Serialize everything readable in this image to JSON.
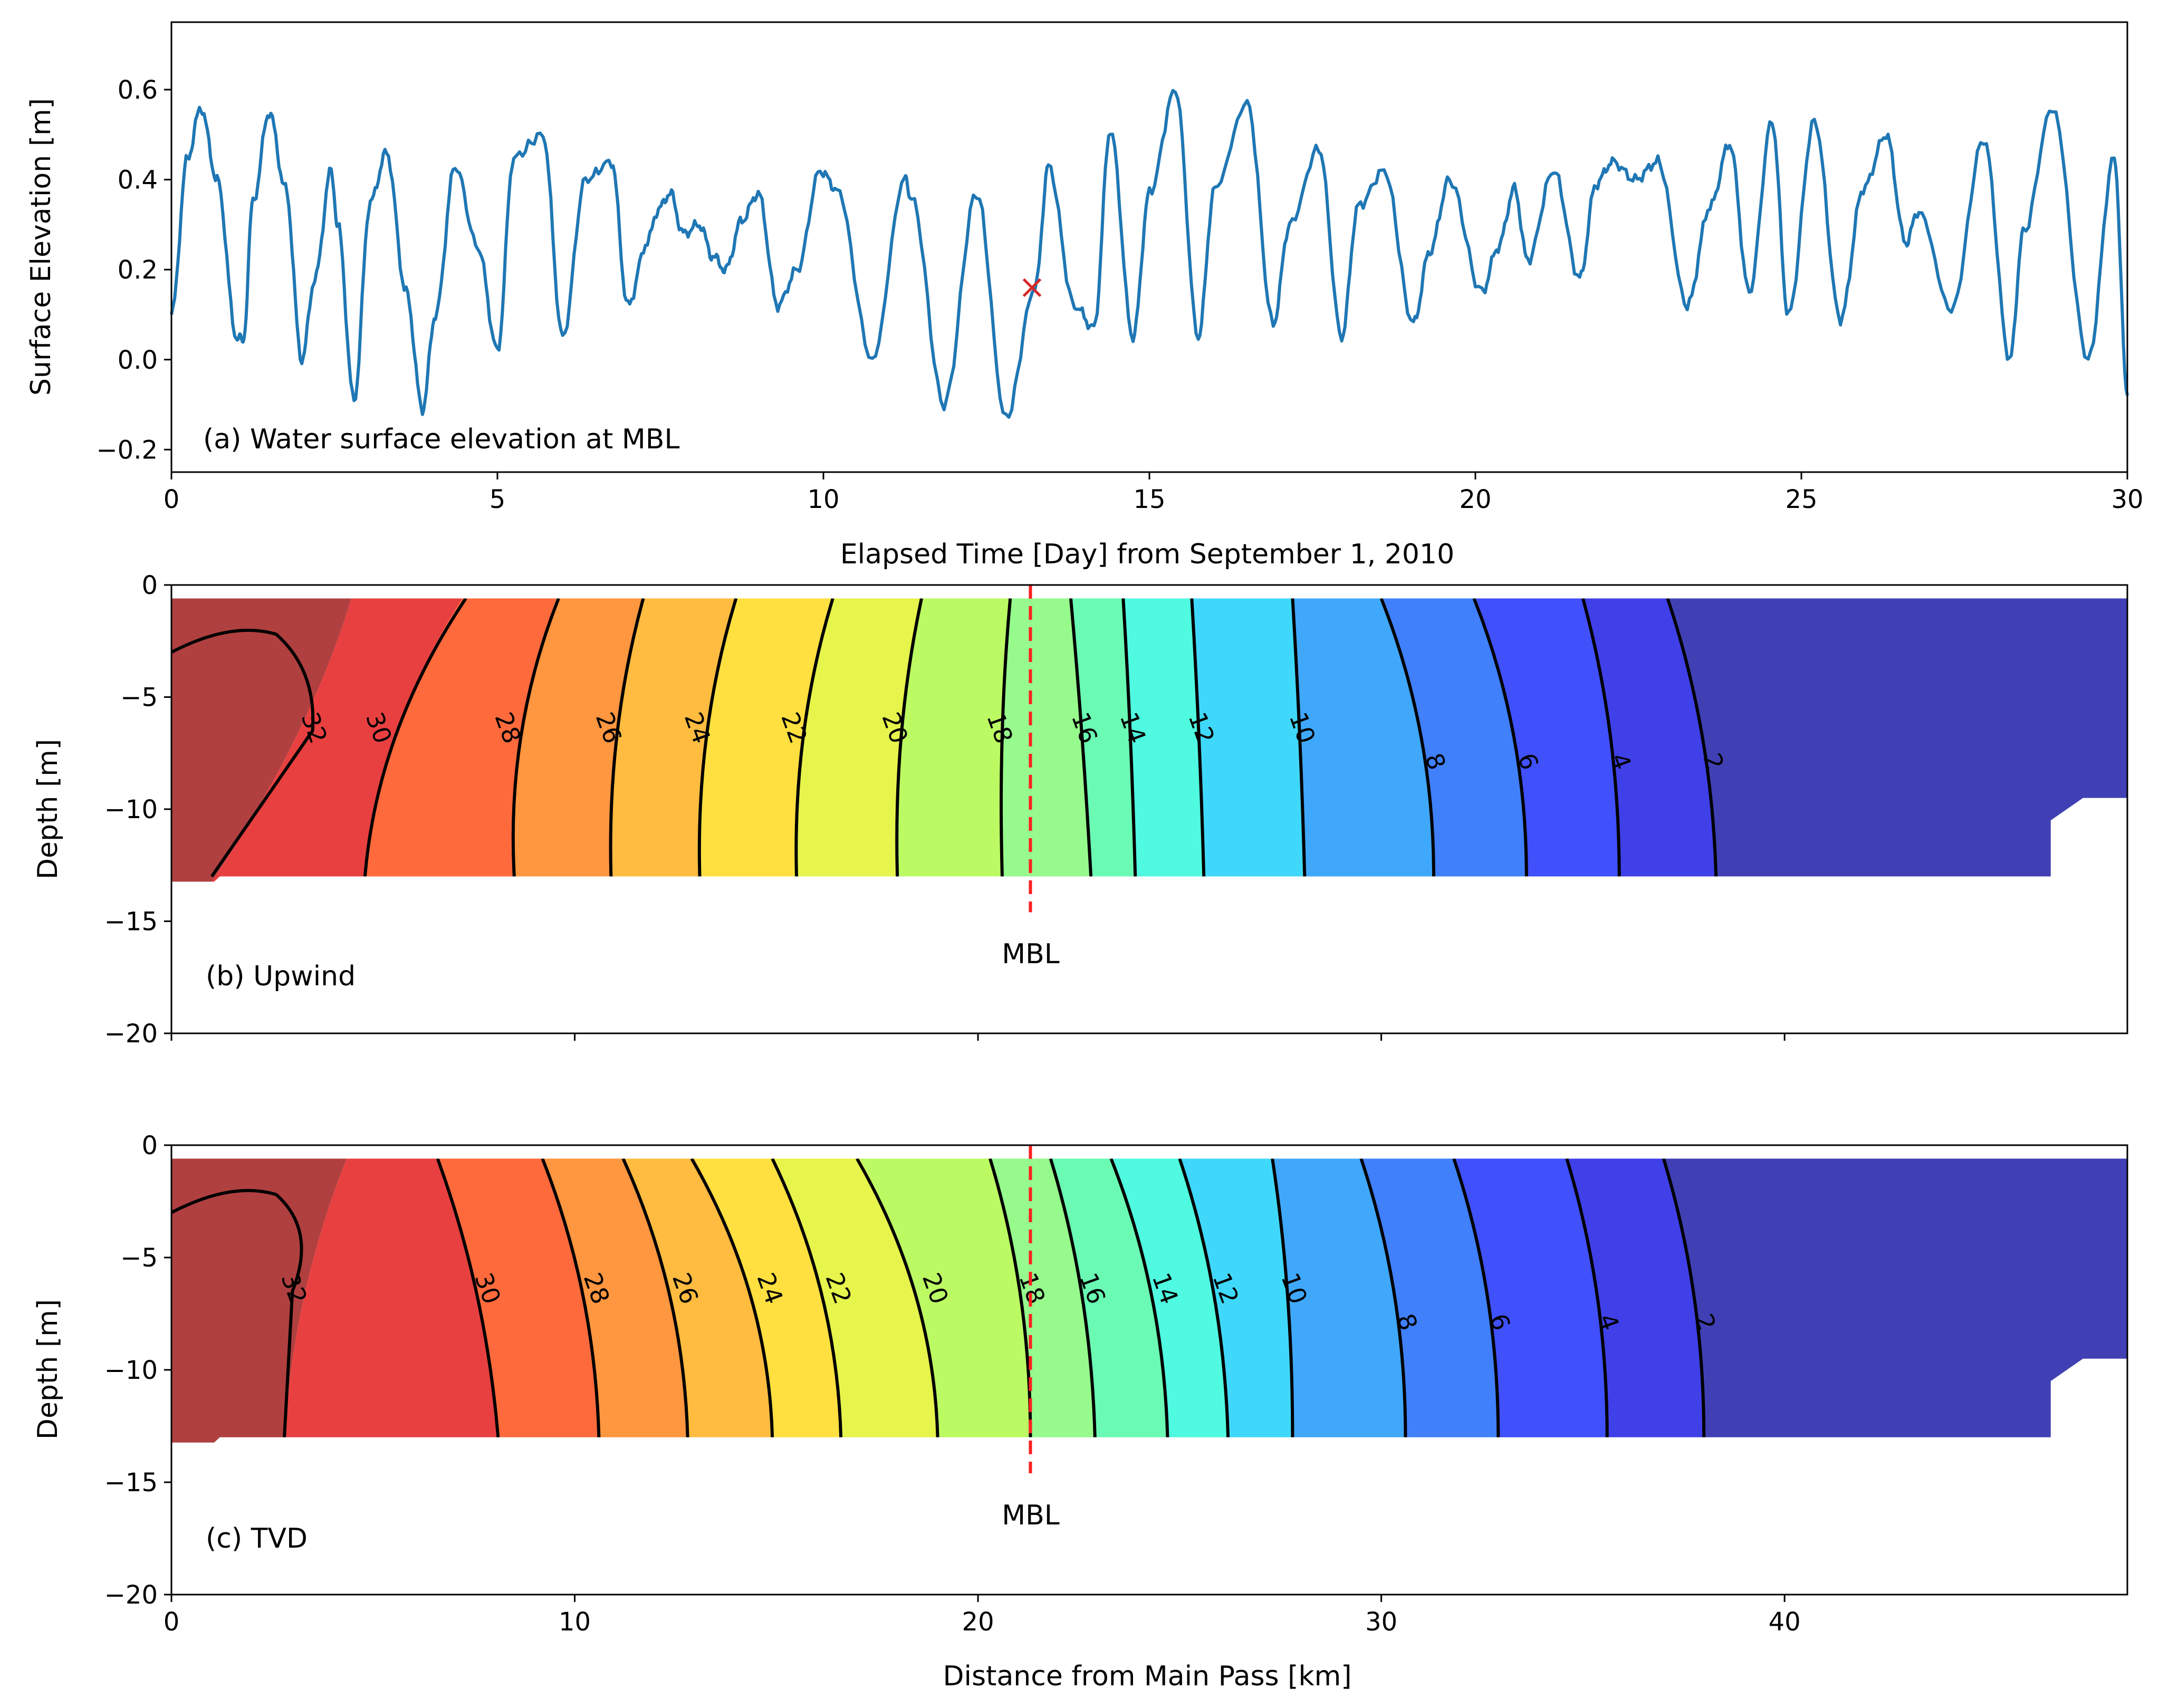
{
  "chart_data": [
    {
      "panel": "a",
      "type": "line",
      "annotation": "(a) Water surface elevation at MBL",
      "xlabel": "Elapsed Time [Day] from September 1, 2010",
      "ylabel": "Surface Elevation [m]",
      "xlim": [
        0,
        30
      ],
      "ylim": [
        -0.25,
        0.75
      ],
      "xticks": [
        "0",
        "5",
        "10",
        "15",
        "20",
        "25",
        "30"
      ],
      "yticks": [
        "−0.2",
        "0.0",
        "0.2",
        "0.4",
        "0.6"
      ],
      "series": [
        {
          "name": "Water surface elevation",
          "color": "#1f77b4",
          "x": [
            0,
            0.25,
            0.45,
            0.7,
            1.0,
            1.1,
            1.25,
            1.5,
            1.75,
            2.0,
            2.2,
            2.45,
            2.55,
            2.8,
            3.05,
            3.3,
            3.6,
            3.85,
            4.05,
            4.35,
            4.7,
            5.0,
            5.25,
            5.7,
            6.0,
            6.35,
            6.75,
            7.0,
            7.3,
            7.45,
            7.65,
            7.85,
            8.1,
            8.3,
            8.5,
            8.75,
            9.0,
            9.3,
            9.6,
            9.95,
            10.2,
            10.75,
            11.25,
            11.35,
            11.85,
            12.35,
            12.8,
            13.25,
            13.45,
            13.85,
            14.15,
            14.4,
            14.75,
            15.0,
            15.4,
            15.75,
            16.0,
            16.5,
            16.9,
            17.15,
            17.6,
            17.95,
            18.2,
            18.6,
            19.05,
            19.3,
            19.6,
            20.1,
            20.35,
            20.6,
            20.8,
            21.2,
            21.6,
            21.85,
            22.1,
            22.45,
            22.8,
            23.25,
            23.6,
            23.9,
            24.2,
            24.55,
            24.8,
            25.2,
            25.6,
            25.95,
            26.3,
            26.6,
            26.8,
            27.3,
            27.8,
            28.2,
            28.4,
            28.85,
            29.4,
            29.8,
            30.0
          ],
          "values": [
            0.1,
            0.45,
            0.56,
            0.4,
            0.05,
            0.04,
            0.35,
            0.55,
            0.38,
            0.0,
            0.18,
            0.42,
            0.3,
            -0.09,
            0.35,
            0.46,
            0.15,
            -0.11,
            0.1,
            0.43,
            0.25,
            0.02,
            0.45,
            0.5,
            0.05,
            0.4,
            0.44,
            0.12,
            0.26,
            0.33,
            0.37,
            0.28,
            0.3,
            0.23,
            0.2,
            0.31,
            0.37,
            0.12,
            0.2,
            0.42,
            0.38,
            0.0,
            0.4,
            0.36,
            -0.1,
            0.37,
            -0.13,
            0.16,
            0.43,
            0.12,
            0.07,
            0.51,
            0.05,
            0.37,
            0.6,
            0.05,
            0.38,
            0.57,
            0.08,
            0.3,
            0.47,
            0.05,
            0.34,
            0.42,
            0.08,
            0.24,
            0.4,
            0.15,
            0.25,
            0.38,
            0.22,
            0.42,
            0.18,
            0.39,
            0.44,
            0.4,
            0.44,
            0.12,
            0.34,
            0.48,
            0.15,
            0.53,
            0.1,
            0.53,
            0.09,
            0.38,
            0.5,
            0.26,
            0.33,
            0.11,
            0.49,
            0.0,
            0.28,
            0.56,
            0.0,
            0.45,
            -0.08
          ]
        }
      ],
      "markers": [
        {
          "x": 13.2,
          "y": 0.16,
          "symbol": "x",
          "color": "#d62728"
        }
      ]
    },
    {
      "panel": "b",
      "type": "contour",
      "annotation": "(b) Upwind",
      "ylabel": "Depth [m]",
      "xlim": [
        0,
        48.5
      ],
      "ylim": [
        -20,
        0
      ],
      "yticks": [
        "−20",
        "−15",
        "−10",
        "−5",
        "0"
      ],
      "marker_line": {
        "x": 21.3,
        "label": "MBL",
        "color": "#ff2020"
      },
      "levels": [
        32,
        30,
        28,
        26,
        24,
        22,
        20,
        18,
        16,
        14,
        12,
        10,
        8,
        6,
        4,
        2
      ],
      "level_labels": [
        "32",
        "30",
        "28",
        "26",
        "24",
        "22",
        "20",
        "18",
        "16",
        "14",
        "12",
        "10",
        "8",
        "6",
        "4",
        "2"
      ],
      "contour_x_top": [
        4.5,
        7.3,
        9.6,
        11.7,
        14.0,
        16.4,
        18.6,
        20.8,
        22.3,
        23.6,
        25.3,
        27.8,
        30.0,
        32.3,
        35.0,
        37.1
      ],
      "contour_x_mid": [
        3.5,
        5.1,
        8.3,
        10.8,
        13.0,
        15.4,
        17.9,
        20.5,
        22.6,
        23.8,
        25.5,
        28.0,
        31.3,
        33.6,
        35.9,
        38.2
      ],
      "contour_x_bottom": [
        1.0,
        4.8,
        8.5,
        10.9,
        13.1,
        15.5,
        18.0,
        20.6,
        22.8,
        23.9,
        25.6,
        28.1,
        31.3,
        33.6,
        35.9,
        38.3
      ],
      "band_colors": [
        "#b04040",
        "#e84040",
        "#ff6a3c",
        "#ff9640",
        "#ffbc40",
        "#ffe040",
        "#e6f44c",
        "#bcfa64",
        "#96fa8c",
        "#6afab4",
        "#50fae0",
        "#40d8fa",
        "#40a8fa",
        "#4080fa",
        "#4050fa",
        "#4040e8",
        "#4040b4"
      ]
    },
    {
      "panel": "c",
      "type": "contour",
      "annotation": "(c) TVD",
      "ylabel": "Depth [m]",
      "xlabel": "Distance from Main Pass [km]",
      "xlim": [
        0,
        48.5
      ],
      "ylim": [
        -20,
        0
      ],
      "xticks": [
        "0",
        "10",
        "20",
        "30",
        "40"
      ],
      "yticks": [
        "−20",
        "−15",
        "−10",
        "−5",
        "0"
      ],
      "marker_line": {
        "x": 21.3,
        "label": "MBL",
        "color": "#ff2020"
      },
      "levels": [
        32,
        30,
        28,
        26,
        24,
        22,
        20,
        18,
        16,
        14,
        12,
        10,
        8,
        6,
        4,
        2
      ],
      "level_labels": [
        "32",
        "30",
        "28",
        "26",
        "24",
        "22",
        "20",
        "18",
        "16",
        "14",
        "12",
        "10",
        "8",
        "6",
        "4",
        "2"
      ],
      "contour_x_top": [
        4.4,
        6.6,
        9.2,
        11.2,
        12.9,
        14.9,
        17.0,
        20.3,
        21.8,
        23.3,
        25.0,
        27.3,
        29.5,
        31.8,
        34.6,
        37.0
      ],
      "contour_x_mid": [
        3.0,
        7.8,
        10.5,
        12.7,
        14.8,
        16.5,
        18.9,
        21.3,
        22.8,
        24.6,
        26.1,
        27.8,
        30.6,
        32.9,
        35.6,
        38.0
      ],
      "contour_x_bottom": [
        2.8,
        8.1,
        10.6,
        12.8,
        14.9,
        16.6,
        19.0,
        21.3,
        22.9,
        24.7,
        26.2,
        27.8,
        30.6,
        32.9,
        35.6,
        38.0
      ],
      "band_colors": [
        "#b04040",
        "#e84040",
        "#ff6a3c",
        "#ff9640",
        "#ffbc40",
        "#ffe040",
        "#e6f44c",
        "#bcfa64",
        "#96fa8c",
        "#6afab4",
        "#50fae0",
        "#40d8fa",
        "#40a8fa",
        "#4080fa",
        "#4050fa",
        "#4040e8",
        "#4040b4"
      ]
    }
  ]
}
